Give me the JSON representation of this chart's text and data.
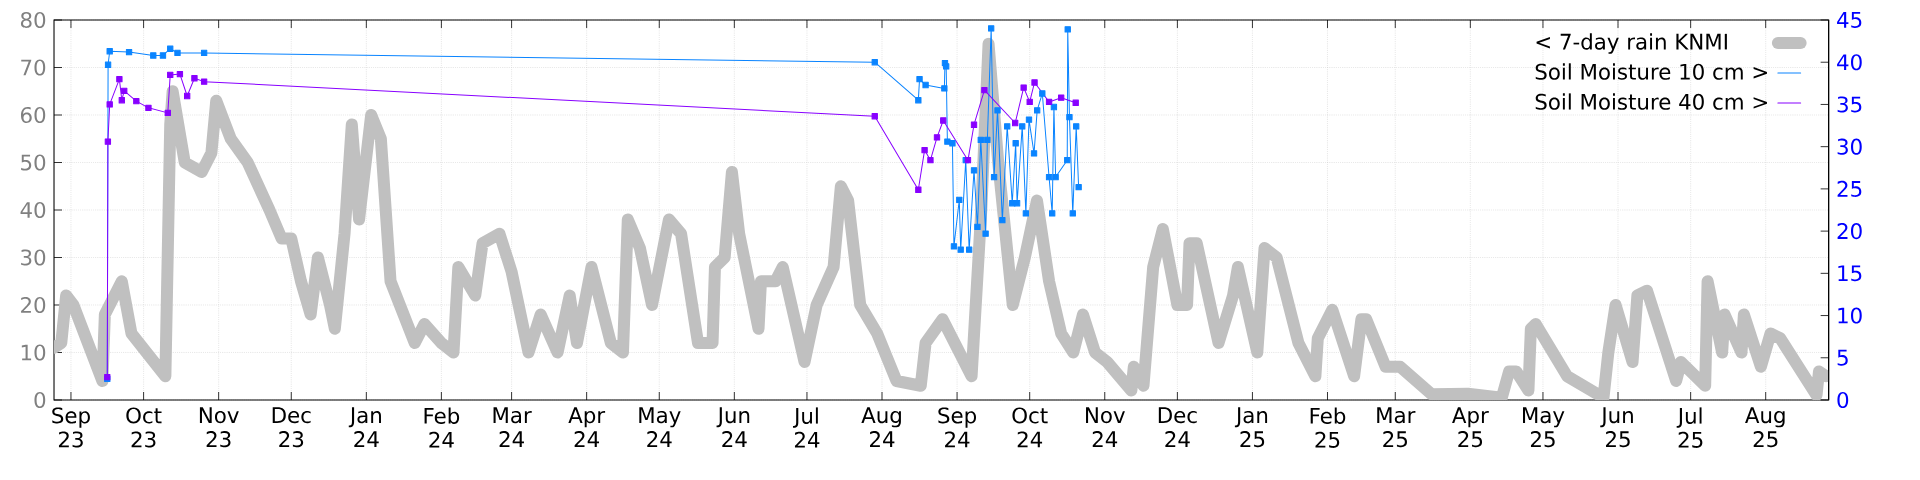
{
  "chart_data": {
    "type": "line",
    "xlim": [
      "2023-08-25",
      "2025-08-27"
    ],
    "xticks": [
      {
        "value": "2023-09-01",
        "label": "Sep 23"
      },
      {
        "value": "2023-10-01",
        "label": "Oct 23"
      },
      {
        "value": "2023-11-01",
        "label": "Nov 23"
      },
      {
        "value": "2023-12-01",
        "label": "Dec 23"
      },
      {
        "value": "2024-01-01",
        "label": "Jan 24"
      },
      {
        "value": "2024-02-01",
        "label": "Feb 24"
      },
      {
        "value": "2024-03-01",
        "label": "Mar 24"
      },
      {
        "value": "2024-04-01",
        "label": "Apr 24"
      },
      {
        "value": "2024-05-01",
        "label": "May 24"
      },
      {
        "value": "2024-06-01",
        "label": "Jun 24"
      },
      {
        "value": "2024-07-01",
        "label": "Jul 24"
      },
      {
        "value": "2024-08-01",
        "label": "Aug 24"
      },
      {
        "value": "2024-09-01",
        "label": "Sep 24"
      },
      {
        "value": "2024-10-01",
        "label": "Oct 24"
      },
      {
        "value": "2024-11-01",
        "label": "Nov 24"
      },
      {
        "value": "2024-12-01",
        "label": "Dec 24"
      },
      {
        "value": "2025-01-01",
        "label": "Jan 25"
      },
      {
        "value": "2025-02-01",
        "label": "Feb 25"
      },
      {
        "value": "2025-03-01",
        "label": "Mar 25"
      },
      {
        "value": "2025-04-01",
        "label": "Apr 25"
      },
      {
        "value": "2025-05-01",
        "label": "May 25"
      },
      {
        "value": "2025-06-01",
        "label": "Jun 25"
      },
      {
        "value": "2025-07-01",
        "label": "Jul 25"
      },
      {
        "value": "2025-08-01",
        "label": "Aug 25"
      }
    ],
    "ylim": [
      0,
      80
    ],
    "yticks": [
      0,
      10,
      20,
      30,
      40,
      50,
      60,
      70,
      80
    ],
    "y2lim": [
      0,
      45
    ],
    "y2ticks": [
      0,
      5,
      10,
      15,
      20,
      25,
      30,
      35,
      40,
      45
    ],
    "grid": true,
    "legend": "top right",
    "series": [
      {
        "name": "< 7-day rain KNMI",
        "color": "#c0c0c0",
        "x": [
          "2023-08-25",
          "2023-08-28",
          "2023-08-30",
          "2023-09-02",
          "2023-09-14",
          "2023-09-15",
          "2023-09-22",
          "2023-09-26",
          "2023-10-10",
          "2023-10-12",
          "2023-10-13",
          "2023-10-18",
          "2023-10-25",
          "2023-10-29",
          "2023-10-31",
          "2023-11-06",
          "2023-11-13",
          "2023-11-22",
          "2023-11-27",
          "2023-12-01",
          "2023-12-05",
          "2023-12-09",
          "2023-12-12",
          "2023-12-17",
          "2023-12-19",
          "2023-12-23",
          "2023-12-26",
          "2023-12-29",
          "2024-01-03",
          "2024-01-07",
          "2024-01-11",
          "2024-01-21",
          "2024-01-25",
          "2024-02-01",
          "2024-02-06",
          "2024-02-08",
          "2024-02-15",
          "2024-02-18",
          "2024-02-25",
          "2024-03-01",
          "2024-03-08",
          "2024-03-13",
          "2024-03-20",
          "2024-03-25",
          "2024-03-28",
          "2024-04-03",
          "2024-04-11",
          "2024-04-16",
          "2024-04-18",
          "2024-04-23",
          "2024-04-28",
          "2024-05-05",
          "2024-05-10",
          "2024-05-17",
          "2024-05-23",
          "2024-05-24",
          "2024-05-28",
          "2024-05-31",
          "2024-06-03",
          "2024-06-11",
          "2024-06-12",
          "2024-06-18",
          "2024-06-21",
          "2024-06-30",
          "2024-07-05",
          "2024-07-12",
          "2024-07-15",
          "2024-07-18",
          "2024-07-23",
          "2024-07-30",
          "2024-08-07",
          "2024-08-17",
          "2024-08-19",
          "2024-08-26",
          "2024-09-07",
          "2024-09-11",
          "2024-09-14",
          "2024-09-18",
          "2024-09-24",
          "2024-09-29",
          "2024-10-04",
          "2024-10-09",
          "2024-10-14",
          "2024-10-19",
          "2024-10-23",
          "2024-10-28",
          "2024-11-02",
          "2024-11-12",
          "2024-11-13",
          "2024-11-17",
          "2024-11-21",
          "2024-11-25",
          "2024-12-01",
          "2024-12-05",
          "2024-12-06",
          "2024-12-09",
          "2024-12-18",
          "2024-12-24",
          "2024-12-26",
          "2025-01-03",
          "2025-01-06",
          "2025-01-11",
          "2025-01-15",
          "2025-01-20",
          "2025-01-27",
          "2025-01-28",
          "2025-02-03",
          "2025-02-12",
          "2025-02-15",
          "2025-02-17",
          "2025-02-25",
          "2025-03-03",
          "2025-03-16",
          "2025-03-31",
          "2025-04-14",
          "2025-04-17",
          "2025-04-20",
          "2025-04-25",
          "2025-04-26",
          "2025-04-28",
          "2025-05-11",
          "2025-05-26",
          "2025-05-28",
          "2025-05-31",
          "2025-06-07",
          "2025-06-09",
          "2025-06-13",
          "2025-06-25",
          "2025-06-27",
          "2025-07-07",
          "2025-07-08",
          "2025-07-14",
          "2025-07-15",
          "2025-07-22",
          "2025-07-23",
          "2025-07-30",
          "2025-08-03",
          "2025-08-07",
          "2025-08-22",
          "2025-08-23",
          "2025-08-26"
        ],
        "values": [
          11,
          12,
          22,
          20,
          4,
          18,
          25,
          14,
          5,
          58,
          65,
          50,
          48,
          52,
          63,
          55,
          50,
          40,
          34,
          34,
          25,
          18,
          30,
          20,
          15,
          35,
          58,
          38,
          60,
          55,
          25,
          12,
          16,
          12,
          10,
          28,
          22,
          33,
          35,
          27,
          10,
          18,
          10,
          22,
          12,
          28,
          12,
          10,
          38,
          32,
          20,
          38,
          35,
          12,
          12,
          28,
          30,
          48,
          35,
          15,
          25,
          25,
          28,
          8,
          20,
          28,
          45,
          42,
          20,
          14,
          4,
          3,
          12,
          17,
          5,
          40,
          75,
          50,
          20,
          30,
          42,
          25,
          14,
          10,
          18,
          10,
          8,
          2,
          7,
          3,
          28,
          36,
          20,
          20,
          33,
          33,
          12,
          22,
          28,
          10,
          32,
          30,
          22,
          12,
          5,
          13,
          19,
          5,
          17,
          17,
          7,
          7,
          1.2,
          1.3,
          0.5,
          6,
          6,
          2,
          15,
          16,
          5,
          0.5,
          10,
          20,
          8,
          22,
          23,
          4,
          8,
          3,
          25,
          10,
          18,
          10,
          18,
          7,
          14,
          13,
          1,
          6,
          5
        ]
      },
      {
        "name": "Soil Moisture 10 cm >",
        "color": "#0a84ff",
        "axis": "y2",
        "marker": "square",
        "x": [
          "2023-09-16T00:00",
          "2023-09-16T08:00",
          "2023-09-17",
          "2023-09-25",
          "2023-10-05",
          "2023-10-09",
          "2023-10-12",
          "2023-10-15",
          "2023-10-26",
          "2024-07-29",
          "2024-08-16T00:00",
          "2024-08-16T12:00",
          "2024-08-19",
          "2024-08-26T18:00",
          "2024-08-27T00:00",
          "2024-08-27T12:00",
          "2024-08-28",
          "2024-08-30T02:00",
          "2024-08-30T17:00",
          "2024-09-01T22:00",
          "2024-09-02T12:00",
          "2024-09-04T14:00",
          "2024-09-06",
          "2024-09-08",
          "2024-09-09T10:00",
          "2024-09-10T19:00",
          "2024-09-12T19:00",
          "2024-09-13T12:00",
          "2024-09-15T02:00",
          "2024-09-16T07:00",
          "2024-09-17T17:00",
          "2024-09-19T17:00",
          "2024-09-21T17:00",
          "2024-09-23T19:00",
          "2024-09-25T05:00",
          "2024-09-25T19:00",
          "2024-09-27T22:00",
          "2024-09-29T10:00",
          "2024-09-30T17:00",
          "2024-10-02T19:00",
          "2024-10-04T02:00",
          "2024-10-06T05:00",
          "2024-10-09",
          "2024-10-10T07:00",
          "2024-10-11T00:00",
          "2024-10-11T17:00",
          "2024-10-16T12:00",
          "2024-10-16T17:00",
          "2024-10-17T10:00",
          "2024-10-18T19:00",
          "2024-10-20T05:00",
          "2024-10-21T05:00"
        ],
        "values": [
          2.5,
          39.7,
          41.3,
          41.2,
          40.8,
          40.8,
          41.6,
          41.1,
          41.1,
          40.0,
          35.5,
          38.0,
          37.3,
          36.9,
          39.9,
          39.5,
          30.6,
          30.4,
          18.2,
          23.7,
          17.8,
          28.4,
          17.8,
          27.2,
          20.5,
          30.8,
          19.7,
          30.8,
          44,
          26.4,
          34.3,
          21.3,
          32.4,
          23.3,
          30.4,
          23.3,
          32.4,
          22.1,
          33.2,
          29.2,
          34.3,
          36.3,
          26.4,
          22.1,
          34.7,
          26.4,
          28.4,
          43.9,
          33.5,
          22.1,
          32.4,
          25.2
        ]
      },
      {
        "name": "Soil Moisture 40 cm >",
        "color": "#8800ff",
        "axis": "y2",
        "marker": "square",
        "x": [
          "2023-09-16T00:00",
          "2023-09-16T06:00",
          "2023-09-17",
          "2023-09-21",
          "2023-09-22",
          "2023-09-23",
          "2023-09-28",
          "2023-10-03",
          "2023-10-11",
          "2023-10-12",
          "2023-10-16",
          "2023-10-19",
          "2023-10-22",
          "2023-10-26",
          "2024-07-29",
          "2024-08-16",
          "2024-08-18T14:00",
          "2024-08-21",
          "2024-08-23T17:00",
          "2024-08-26T07:00",
          "2024-09-05T12:00",
          "2024-09-08",
          "2024-09-12T07:00",
          "2024-09-25",
          "2024-09-28T12:00",
          "2024-10-01",
          "2024-10-03",
          "2024-10-09",
          "2024-10-14",
          "2024-10-20"
        ],
        "values": [
          2.7,
          30.6,
          35.0,
          38.0,
          35.5,
          36.6,
          35.4,
          34.6,
          34.0,
          38.5,
          38.6,
          36.0,
          38.1,
          37.7,
          33.6,
          24.9,
          29.6,
          28.4,
          31.1,
          33.1,
          28.4,
          32.6,
          36.7,
          32.8,
          37.0,
          35.3,
          37.6,
          35.3,
          35.8,
          35.2
        ]
      }
    ]
  }
}
